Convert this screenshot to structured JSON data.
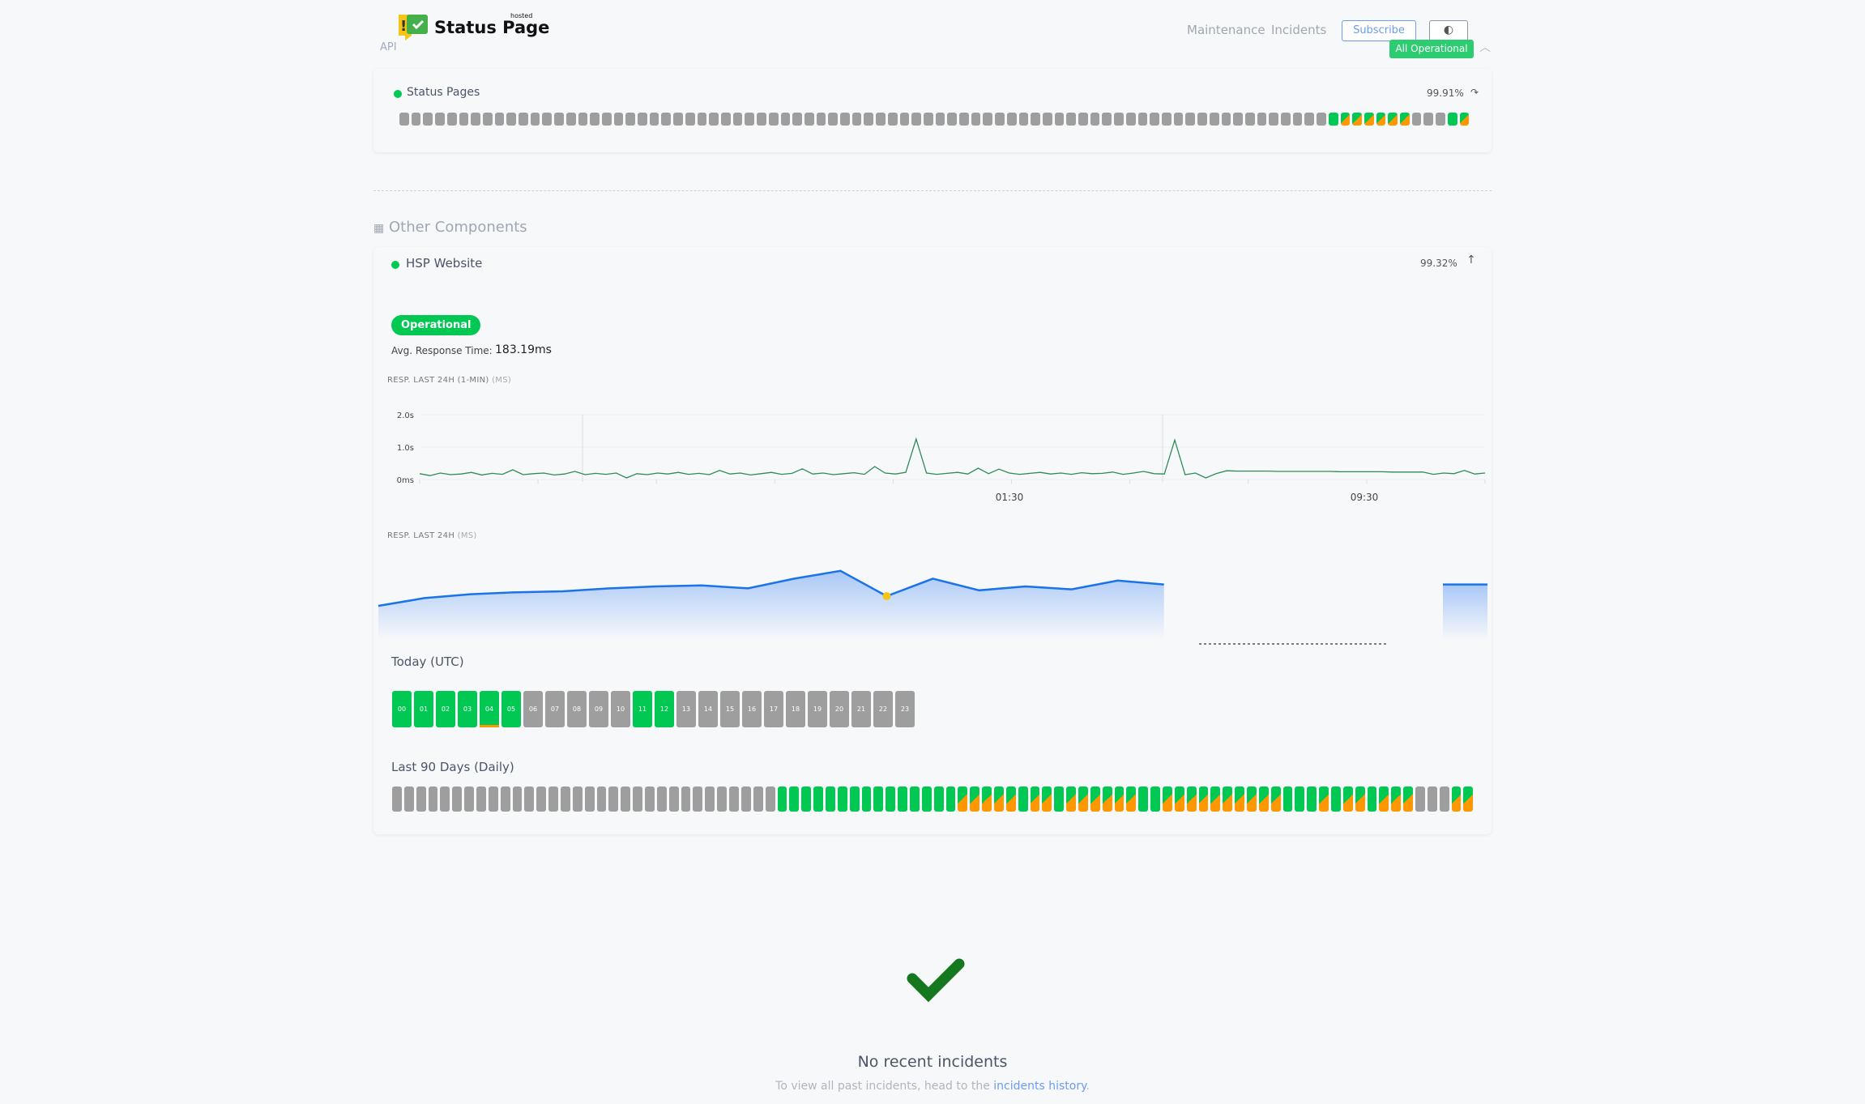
{
  "header": {
    "logo_text": "Status Page",
    "logo_sup": "hosted",
    "group_label": "API",
    "nav": [
      "Maintenance",
      "Incidents"
    ],
    "subscribe": "Subscribe",
    "theme_toggle_icon": "half-circle-icon",
    "overall_status": "All Operational"
  },
  "status_pages": {
    "name": "Status Pages",
    "uptime": "99.91%",
    "days": "ggggggggggggggggggggggggggggggggggggggggggggggggggggggggggggggggggggggggggggggGPPPPPPgggGP"
  },
  "other_components": {
    "title": "Other Components",
    "hsp": {
      "name": "HSP Website",
      "uptime": "99.32%",
      "status": "Operational",
      "avg_label": "Avg. Response Time:",
      "avg_value": "183.19ms",
      "chart1_label": "RESP. LAST 24H (1-MIN)",
      "chart1_unit": "(MS)",
      "chart2_label": "RESP. LAST 24H",
      "chart2_unit": "(MS)",
      "today_label": "Today (UTC)",
      "hours": [
        {
          "h": "00",
          "s": "g"
        },
        {
          "h": "01",
          "s": "g"
        },
        {
          "h": "02",
          "s": "g"
        },
        {
          "h": "03",
          "s": "g"
        },
        {
          "h": "04",
          "s": "gu"
        },
        {
          "h": "05",
          "s": "g"
        },
        {
          "h": "06",
          "s": "x"
        },
        {
          "h": "07",
          "s": "x"
        },
        {
          "h": "08",
          "s": "x"
        },
        {
          "h": "09",
          "s": "x"
        },
        {
          "h": "10",
          "s": "x"
        },
        {
          "h": "11",
          "s": "g"
        },
        {
          "h": "12",
          "s": "g"
        },
        {
          "h": "13",
          "s": "x"
        },
        {
          "h": "14",
          "s": "x"
        },
        {
          "h": "15",
          "s": "x"
        },
        {
          "h": "16",
          "s": "x"
        },
        {
          "h": "17",
          "s": "x"
        },
        {
          "h": "18",
          "s": "x"
        },
        {
          "h": "19",
          "s": "x"
        },
        {
          "h": "20",
          "s": "x"
        },
        {
          "h": "21",
          "s": "x"
        },
        {
          "h": "22",
          "s": "x"
        },
        {
          "h": "23",
          "s": "x"
        }
      ],
      "days_label": "Last 90 Days (Daily)",
      "days": "xxxxxxxxxxxxxxxxxxxxxxxxxxxxxxxxGGGGGGGGGGGGGGGPPPPPGPPGPPPPPPGGPPPPPPPPPPGGGPGPPGPPPxxxPP"
    }
  },
  "chart_data": [
    {
      "type": "line",
      "yticks": [
        "0ms",
        "1.0s",
        "2.0s"
      ],
      "ylim": [
        0,
        2.0
      ],
      "xticks": [
        "01:30",
        "09:30"
      ],
      "color": "#2e8b57",
      "values": [
        0.18,
        0.12,
        0.2,
        0.15,
        0.17,
        0.22,
        0.14,
        0.19,
        0.16,
        0.3,
        0.15,
        0.18,
        0.2,
        0.14,
        0.17,
        0.25,
        0.15,
        0.19,
        0.16,
        0.2,
        0.05,
        0.18,
        0.15,
        0.2,
        0.17,
        0.22,
        0.16,
        0.19,
        0.15,
        0.28,
        0.17,
        0.2,
        0.14,
        0.18,
        0.22,
        0.16,
        0.19,
        0.33,
        0.17,
        0.2,
        0.15,
        0.18,
        0.21,
        0.16,
        0.4,
        0.2,
        0.17,
        0.22,
        1.25,
        0.2,
        0.16,
        0.19,
        0.22,
        0.17,
        0.35,
        0.18,
        0.32,
        0.2,
        0.16,
        0.19,
        0.22,
        0.17,
        0.2,
        0.16,
        0.21,
        0.18,
        0.19,
        0.23,
        0.16,
        0.2,
        0.25,
        0.18,
        0.17,
        1.22,
        0.15,
        0.2,
        0.05,
        0.18,
        0.27,
        0.26,
        0.26,
        0.26,
        0.26,
        0.25,
        0.25,
        0.25,
        0.25,
        0.25,
        0.25,
        0.24,
        0.24,
        0.24,
        0.24,
        0.24,
        0.23,
        0.23,
        0.23,
        0.23,
        0.16,
        0.2,
        0.18,
        0.28,
        0.17,
        0.2
      ]
    },
    {
      "type": "area",
      "color": "#1a73e8",
      "values": [
        160,
        168,
        172,
        174,
        175,
        178,
        180,
        181,
        178,
        188,
        196,
        170,
        188,
        176,
        180,
        177,
        186,
        182,
        null,
        null,
        null,
        null,
        null,
        null,
        182
      ],
      "highlight_index": 11,
      "highlight_color": "#f5c518"
    }
  ],
  "incidents": {
    "title": "No recent incidents",
    "text": "To view all past incidents, head to the ",
    "link": "incidents history",
    "end": "."
  }
}
